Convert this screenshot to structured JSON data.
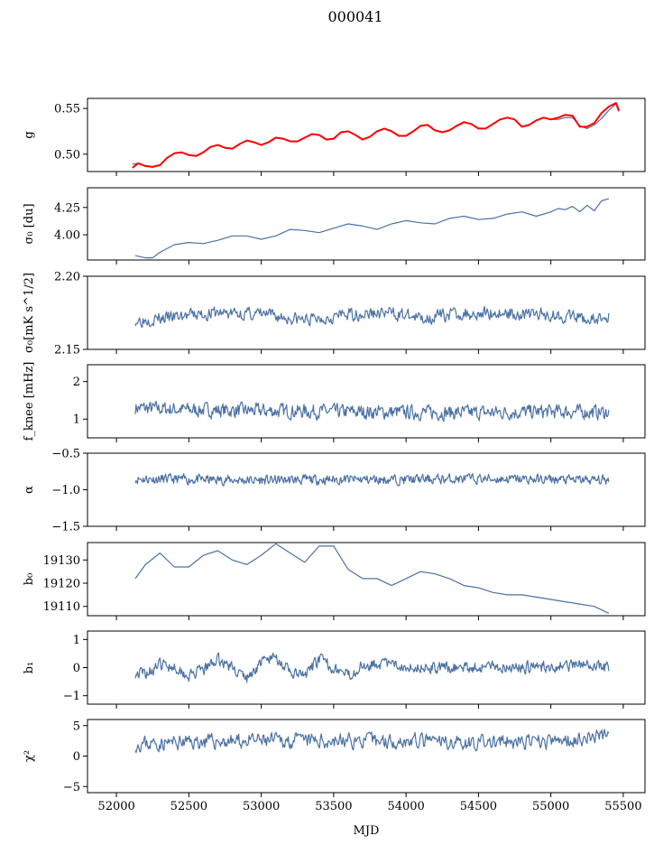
{
  "title": "000041",
  "colors": {
    "series": "#4c72a4",
    "model": "#ff0000",
    "axis": "#000000",
    "background": "#ffffff"
  },
  "xaxis": {
    "label": "MJD",
    "range": [
      51800,
      55650
    ],
    "ticks": [
      52000,
      52500,
      53000,
      53500,
      54000,
      54500,
      55000,
      55500
    ],
    "tick_labels": [
      "52000",
      "52500",
      "53000",
      "53500",
      "54000",
      "54500",
      "55000",
      "55500"
    ]
  },
  "chart_data": [
    {
      "type": "line",
      "id": "g",
      "ylabel": "g",
      "ylim": [
        0.481,
        0.561
      ],
      "yticks": [
        0.5,
        0.55
      ],
      "ytick_labels": [
        "0.50",
        "0.55"
      ],
      "grid": false,
      "series": [
        {
          "kind": "data",
          "color": "#4c72a4",
          "x": [
            52110,
            52150,
            52200,
            52250,
            52300,
            52350,
            52400,
            52450,
            52500,
            52550,
            52600,
            52650,
            52700,
            52750,
            52800,
            52850,
            52900,
            52950,
            53000,
            53050,
            53100,
            53150,
            53200,
            53250,
            53300,
            53350,
            53400,
            53450,
            53500,
            53550,
            53600,
            53650,
            53700,
            53750,
            53800,
            53850,
            53900,
            53950,
            54000,
            54050,
            54100,
            54150,
            54200,
            54250,
            54300,
            54350,
            54400,
            54450,
            54500,
            54550,
            54600,
            54650,
            54700,
            54750,
            54800,
            54850,
            54900,
            54950,
            55000,
            55050,
            55100,
            55150,
            55200,
            55250,
            55300,
            55350,
            55400,
            55450,
            55470
          ],
          "y": [
            0.489,
            0.49,
            0.487,
            0.486,
            0.488,
            0.496,
            0.501,
            0.502,
            0.499,
            0.498,
            0.502,
            0.508,
            0.51,
            0.507,
            0.506,
            0.511,
            0.515,
            0.513,
            0.51,
            0.513,
            0.518,
            0.517,
            0.514,
            0.514,
            0.518,
            0.522,
            0.521,
            0.516,
            0.517,
            0.524,
            0.525,
            0.521,
            0.516,
            0.519,
            0.525,
            0.528,
            0.525,
            0.52,
            0.52,
            0.525,
            0.531,
            0.532,
            0.526,
            0.524,
            0.526,
            0.531,
            0.535,
            0.533,
            0.528,
            0.528,
            0.533,
            0.538,
            0.54,
            0.538,
            0.53,
            0.532,
            0.537,
            0.54,
            0.538,
            0.538,
            0.54,
            0.54,
            0.531,
            0.528,
            0.532,
            0.539,
            0.548,
            0.555,
            0.55
          ]
        },
        {
          "kind": "model",
          "color": "#ff0000",
          "x": [
            52110,
            52150,
            52200,
            52250,
            52300,
            52350,
            52400,
            52450,
            52500,
            52550,
            52600,
            52650,
            52700,
            52750,
            52800,
            52850,
            52900,
            52950,
            53000,
            53050,
            53100,
            53150,
            53200,
            53250,
            53300,
            53350,
            53400,
            53450,
            53500,
            53550,
            53600,
            53650,
            53700,
            53750,
            53800,
            53850,
            53900,
            53950,
            54000,
            54050,
            54100,
            54150,
            54200,
            54250,
            54300,
            54350,
            54400,
            54450,
            54500,
            54550,
            54600,
            54650,
            54700,
            54750,
            54800,
            54850,
            54900,
            54950,
            55000,
            55050,
            55100,
            55150,
            55200,
            55250,
            55300,
            55350,
            55400,
            55450,
            55470
          ],
          "y": [
            0.485,
            0.49,
            0.487,
            0.486,
            0.488,
            0.496,
            0.501,
            0.502,
            0.499,
            0.498,
            0.502,
            0.508,
            0.51,
            0.507,
            0.506,
            0.511,
            0.515,
            0.513,
            0.51,
            0.513,
            0.518,
            0.517,
            0.514,
            0.514,
            0.518,
            0.522,
            0.521,
            0.516,
            0.517,
            0.524,
            0.525,
            0.521,
            0.516,
            0.519,
            0.525,
            0.528,
            0.525,
            0.52,
            0.52,
            0.525,
            0.531,
            0.532,
            0.526,
            0.524,
            0.526,
            0.531,
            0.535,
            0.533,
            0.528,
            0.528,
            0.533,
            0.538,
            0.54,
            0.538,
            0.53,
            0.532,
            0.537,
            0.54,
            0.538,
            0.54,
            0.543,
            0.542,
            0.53,
            0.53,
            0.534,
            0.545,
            0.552,
            0.556,
            0.547
          ]
        }
      ]
    },
    {
      "type": "line",
      "id": "sigma0",
      "ylabel": "σ₀ [du]",
      "ylim": [
        3.77,
        4.43
      ],
      "yticks": [
        4.0,
        4.25
      ],
      "ytick_labels": [
        "4.00",
        "4.25"
      ],
      "grid": false,
      "series": [
        {
          "kind": "data",
          "color": "#4c72a4",
          "x": [
            52130,
            52200,
            52250,
            52300,
            52400,
            52500,
            52600,
            52700,
            52800,
            52900,
            53000,
            53100,
            53200,
            53300,
            53400,
            53500,
            53600,
            53700,
            53800,
            53900,
            54000,
            54100,
            54200,
            54300,
            54400,
            54500,
            54600,
            54700,
            54800,
            54900,
            55000,
            55050,
            55100,
            55150,
            55200,
            55250,
            55300,
            55350,
            55400
          ],
          "y": [
            3.81,
            3.79,
            3.79,
            3.84,
            3.91,
            3.93,
            3.92,
            3.95,
            3.99,
            3.99,
            3.96,
            3.99,
            4.05,
            4.04,
            4.02,
            4.06,
            4.1,
            4.08,
            4.05,
            4.1,
            4.13,
            4.11,
            4.1,
            4.15,
            4.17,
            4.14,
            4.15,
            4.19,
            4.21,
            4.17,
            4.21,
            4.24,
            4.23,
            4.26,
            4.21,
            4.27,
            4.22,
            4.31,
            4.33
          ]
        }
      ]
    },
    {
      "type": "line",
      "id": "sigma0_mK",
      "ylabel": "σ₀[mK s^1/2]",
      "ylim": [
        2.15,
        2.2
      ],
      "yticks": [
        2.15,
        2.2
      ],
      "ytick_labels": [
        "2.15",
        "2.20"
      ],
      "grid": false,
      "series": [
        {
          "kind": "data",
          "color": "#4c72a4",
          "noise": {
            "seed": 3,
            "amplitude": 0.004,
            "step": 6
          },
          "x": [
            52130,
            52400,
            52700,
            53000,
            53300,
            53600,
            53900,
            54100,
            54300,
            54600,
            54900,
            55100,
            55300,
            55400
          ],
          "y": [
            2.17,
            2.172,
            2.175,
            2.174,
            2.17,
            2.174,
            2.175,
            2.171,
            2.174,
            2.175,
            2.174,
            2.173,
            2.17,
            2.172
          ]
        }
      ]
    },
    {
      "type": "line",
      "id": "fknee",
      "ylabel": "f_knee [mHz]",
      "ylim": [
        0.5,
        2.45
      ],
      "yticks": [
        1,
        2
      ],
      "ytick_labels": [
        "1",
        "2"
      ],
      "grid": false,
      "series": [
        {
          "kind": "data",
          "color": "#4c72a4",
          "noise": {
            "seed": 7,
            "amplitude": 0.17,
            "step": 5
          },
          "x": [
            52130,
            52500,
            53000,
            53500,
            54000,
            54500,
            55000,
            55400
          ],
          "y": [
            1.3,
            1.25,
            1.22,
            1.2,
            1.18,
            1.17,
            1.2,
            1.18
          ]
        }
      ]
    },
    {
      "type": "line",
      "id": "alpha",
      "ylabel": "α",
      "ylim": [
        -1.5,
        -0.5
      ],
      "yticks": [
        -1.5,
        -1.0,
        -0.5
      ],
      "ytick_labels": [
        "−1.5",
        "−1.0",
        "−0.5"
      ],
      "grid": false,
      "series": [
        {
          "kind": "data",
          "color": "#4c72a4",
          "noise": {
            "seed": 11,
            "amplitude": 0.06,
            "step": 5
          },
          "x": [
            52130,
            52500,
            53000,
            53500,
            54000,
            54500,
            55000,
            55400
          ],
          "y": [
            -0.85,
            -0.86,
            -0.87,
            -0.86,
            -0.86,
            -0.85,
            -0.86,
            -0.87
          ]
        }
      ]
    },
    {
      "type": "line",
      "id": "b0",
      "ylabel": "b₀",
      "ylim": [
        19106,
        19137.5
      ],
      "yticks": [
        19110,
        19120,
        19130
      ],
      "ytick_labels": [
        "19110",
        "19120",
        "19130"
      ],
      "grid": false,
      "series": [
        {
          "kind": "data",
          "color": "#4c72a4",
          "x": [
            52130,
            52200,
            52300,
            52400,
            52500,
            52600,
            52700,
            52800,
            52900,
            53000,
            53100,
            53200,
            53300,
            53400,
            53500,
            53600,
            53700,
            53800,
            53900,
            54000,
            54100,
            54200,
            54300,
            54400,
            54500,
            54600,
            54700,
            54800,
            54900,
            55000,
            55100,
            55200,
            55300,
            55400
          ],
          "y": [
            19122,
            19128,
            19133,
            19127,
            19127,
            19132,
            19134,
            19130,
            19128,
            19132,
            19137,
            19133,
            19129,
            19136,
            19136,
            19126,
            19122,
            19122,
            19119,
            19122,
            19125,
            19124,
            19122,
            19119,
            19118,
            19116,
            19115,
            19115,
            19114,
            19113,
            19112,
            19111,
            19110,
            19107
          ]
        }
      ]
    },
    {
      "type": "line",
      "id": "b1",
      "ylabel": "b₁",
      "ylim": [
        -1.3,
        1.3
      ],
      "yticks": [
        -1,
        0,
        1
      ],
      "ytick_labels": [
        "−1",
        "0",
        "1"
      ],
      "grid": false,
      "series": [
        {
          "kind": "data",
          "color": "#4c72a4",
          "noise": {
            "seed": 19,
            "amplitude": 0.18,
            "step": 5
          },
          "x": [
            52130,
            52200,
            52300,
            52400,
            52500,
            52600,
            52700,
            52800,
            52900,
            53000,
            53100,
            53200,
            53300,
            53400,
            53500,
            53600,
            53700,
            53800,
            53900,
            54000,
            54200,
            54400,
            54600,
            54800,
            55000,
            55200,
            55400
          ],
          "y": [
            -0.2,
            -0.2,
            0.1,
            0.05,
            -0.3,
            -0.1,
            0.3,
            0.0,
            -0.4,
            0.2,
            0.4,
            -0.2,
            -0.3,
            0.3,
            0.0,
            -0.3,
            0.1,
            0.15,
            0.1,
            0.05,
            0.0,
            0.0,
            0.05,
            0.0,
            0.05,
            0.1,
            0.0
          ]
        }
      ]
    },
    {
      "type": "line",
      "id": "chi2",
      "ylabel": "χ²",
      "ylim": [
        -6,
        6
      ],
      "yticks": [
        -5,
        0,
        5
      ],
      "ytick_labels": [
        "−5",
        "0",
        "5"
      ],
      "grid": false,
      "series": [
        {
          "kind": "data",
          "color": "#4c72a4",
          "noise": {
            "seed": 23,
            "amplitude": 1.1,
            "step": 6
          },
          "x": [
            52130,
            52500,
            53000,
            53500,
            54000,
            54500,
            55000,
            55400
          ],
          "y": [
            2.0,
            2.3,
            2.5,
            2.5,
            2.5,
            2.2,
            2.3,
            3.5
          ]
        }
      ]
    }
  ]
}
